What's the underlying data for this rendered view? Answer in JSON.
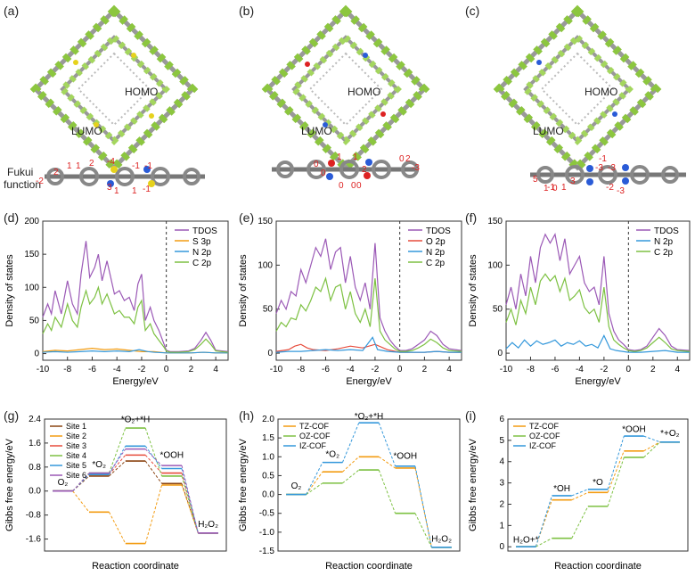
{
  "panels": {
    "a": "(a)",
    "b": "(b)",
    "c": "(c)",
    "d": "(d)",
    "e": "(e)",
    "f": "(f)",
    "g": "(g)",
    "h": "(h)",
    "i": "(i)"
  },
  "structures": {
    "homo": "HOMO",
    "lumo": "LUMO",
    "fukui_line1": "Fukui",
    "fukui_line2": "function",
    "fukui_a": [
      "-2",
      "2",
      "1",
      "1",
      "2",
      "-4",
      "-1",
      "-1",
      "3",
      "1",
      "1",
      "-1"
    ],
    "fukui_b": [
      "0",
      "0",
      "1",
      "0",
      "1",
      "2",
      "0",
      "0",
      "-3",
      "0",
      "2"
    ],
    "fukui_c": [
      "5",
      "-1",
      "1",
      "3",
      "-3",
      "-1",
      "-2",
      "-3",
      "-3",
      "0",
      "1"
    ]
  },
  "colors": {
    "tdos": "#9b59b6",
    "s3p": "#f39c12",
    "o2p": "#e74c3c",
    "n2p": "#3498db",
    "c2p": "#7dc142",
    "tz": "#f39c12",
    "oz": "#7dc142",
    "iz": "#3498db"
  },
  "chart_data": [
    {
      "panel": "d",
      "type": "line",
      "xlabel": "Energy/eV",
      "ylabel": "Density of states",
      "xlim": [
        -10,
        5
      ],
      "ylim": [
        -10,
        200
      ],
      "xticks": [
        "-10",
        "-8",
        "-6",
        "-4",
        "-2",
        "0",
        "2",
        "4"
      ],
      "yticks": [
        "0",
        "50",
        "100",
        "150",
        "200"
      ],
      "fermi_line": 0,
      "legend": [
        "TDOS",
        "S 3p",
        "N 2p",
        "C 2p"
      ],
      "series": [
        {
          "name": "TDOS",
          "x": [
            -10,
            -9.6,
            -9.3,
            -9,
            -8.5,
            -8,
            -7.6,
            -7.2,
            -6.9,
            -6.5,
            -6.2,
            -5.8,
            -5.5,
            -5.2,
            -4.8,
            -4.5,
            -4.2,
            -3.8,
            -3.4,
            -3,
            -2.6,
            -2.3,
            -2,
            -1.7,
            -1.3,
            -1,
            -0.6,
            -0.2,
            0,
            0.3,
            1,
            1.8,
            2.3,
            2.8,
            3.2,
            3.6,
            4,
            5
          ],
          "y": [
            55,
            75,
            60,
            95,
            60,
            110,
            75,
            60,
            120,
            170,
            115,
            130,
            150,
            110,
            140,
            115,
            90,
            95,
            80,
            85,
            65,
            105,
            120,
            50,
            70,
            50,
            35,
            15,
            5,
            3,
            3,
            4,
            8,
            20,
            32,
            20,
            5,
            3
          ]
        },
        {
          "name": "S 3p",
          "x": [
            -10,
            -9,
            -8,
            -7,
            -6.5,
            -6,
            -5,
            -4,
            -3,
            -2.5,
            -2,
            -1,
            0,
            1,
            2,
            3,
            4,
            5
          ],
          "y": [
            3,
            5,
            4,
            6,
            7,
            8,
            6,
            7,
            5,
            4,
            3,
            3,
            1,
            1,
            1,
            2,
            1,
            1
          ]
        },
        {
          "name": "N 2p",
          "x": [
            -10,
            -9,
            -8,
            -7,
            -6,
            -5,
            -4,
            -3,
            -2.2,
            -1.5,
            -1,
            0,
            1,
            2,
            3,
            4,
            5
          ],
          "y": [
            2,
            3,
            2,
            3,
            4,
            3,
            4,
            3,
            6,
            3,
            2,
            1,
            1,
            1,
            2,
            1,
            1
          ]
        },
        {
          "name": "C 2p",
          "x": [
            -10,
            -9.6,
            -9.3,
            -9,
            -8.5,
            -8,
            -7.6,
            -7.2,
            -6.9,
            -6.5,
            -6.2,
            -5.8,
            -5.5,
            -5.2,
            -4.8,
            -4.5,
            -4.2,
            -3.8,
            -3.4,
            -3,
            -2.6,
            -2.3,
            -2,
            -1.7,
            -1.3,
            -1,
            -0.6,
            -0.2,
            0,
            0.3,
            1,
            1.8,
            2.3,
            2.8,
            3.2,
            3.6,
            4,
            5
          ],
          "y": [
            30,
            45,
            35,
            55,
            40,
            75,
            50,
            40,
            70,
            95,
            75,
            85,
            100,
            75,
            90,
            75,
            60,
            65,
            55,
            55,
            45,
            70,
            80,
            35,
            45,
            30,
            20,
            10,
            4,
            2,
            2,
            3,
            6,
            14,
            22,
            14,
            4,
            2
          ]
        }
      ]
    },
    {
      "panel": "e",
      "type": "line",
      "xlabel": "Energy/eV",
      "ylabel": "Density of states",
      "xlim": [
        -10,
        5
      ],
      "ylim": [
        -8,
        150
      ],
      "xticks": [
        "-10",
        "-8",
        "-6",
        "-4",
        "-2",
        "0",
        "2",
        "4"
      ],
      "yticks": [
        "0",
        "50",
        "100",
        "150"
      ],
      "fermi_line": 0,
      "legend": [
        "TDOS",
        "O 2p",
        "N 2p",
        "C 2p"
      ],
      "series": [
        {
          "name": "TDOS",
          "x": [
            -10,
            -9.6,
            -9.2,
            -8.8,
            -8.4,
            -8,
            -7.6,
            -7.2,
            -6.8,
            -6.4,
            -6,
            -5.6,
            -5.2,
            -4.8,
            -4.4,
            -4,
            -3.6,
            -3.2,
            -2.8,
            -2.4,
            -2,
            -1.6,
            -1.2,
            -0.8,
            -0.4,
            0,
            0.5,
            1,
            1.5,
            2,
            2.5,
            3,
            3.5,
            4,
            5
          ],
          "y": [
            45,
            60,
            50,
            70,
            65,
            95,
            80,
            100,
            120,
            110,
            130,
            95,
            115,
            120,
            80,
            110,
            75,
            60,
            80,
            50,
            125,
            40,
            25,
            15,
            8,
            3,
            3,
            5,
            10,
            15,
            25,
            20,
            10,
            5,
            3
          ]
        },
        {
          "name": "O 2p",
          "x": [
            -10,
            -9,
            -8.5,
            -8,
            -7.5,
            -7,
            -6,
            -5,
            -4,
            -3,
            -2,
            -1,
            0,
            1,
            2,
            3,
            4,
            5
          ],
          "y": [
            2,
            4,
            8,
            10,
            6,
            4,
            3,
            5,
            8,
            6,
            10,
            4,
            1,
            1,
            1,
            2,
            1,
            1
          ]
        },
        {
          "name": "N 2p",
          "x": [
            -10,
            -9,
            -8,
            -7,
            -6,
            -5,
            -4,
            -3,
            -2.2,
            -1.8,
            -1,
            0,
            1,
            2,
            3,
            4,
            5
          ],
          "y": [
            1,
            2,
            2,
            3,
            4,
            3,
            4,
            3,
            18,
            4,
            2,
            1,
            1,
            1,
            2,
            1,
            1
          ]
        },
        {
          "name": "C 2p",
          "x": [
            -10,
            -9.6,
            -9.2,
            -8.8,
            -8.4,
            -8,
            -7.6,
            -7.2,
            -6.8,
            -6.4,
            -6,
            -5.6,
            -5.2,
            -4.8,
            -4.4,
            -4,
            -3.6,
            -3.2,
            -2.8,
            -2.4,
            -2,
            -1.6,
            -1.2,
            -0.8,
            -0.4,
            0,
            0.5,
            1,
            1.5,
            2,
            2.5,
            3,
            3.5,
            4,
            5
          ],
          "y": [
            25,
            35,
            30,
            40,
            38,
            55,
            48,
            60,
            75,
            70,
            85,
            60,
            75,
            78,
            50,
            70,
            45,
            35,
            50,
            30,
            85,
            25,
            15,
            10,
            5,
            2,
            2,
            3,
            6,
            10,
            16,
            12,
            6,
            3,
            2
          ]
        }
      ]
    },
    {
      "panel": "f",
      "type": "line",
      "xlabel": "Energy/eV",
      "ylabel": "Density of states",
      "xlim": [
        -10,
        5
      ],
      "ylim": [
        -8,
        150
      ],
      "xticks": [
        "-10",
        "-8",
        "-6",
        "-4",
        "-2",
        "0",
        "2",
        "4"
      ],
      "yticks": [
        "0",
        "50",
        "100",
        "150"
      ],
      "fermi_line": 0,
      "legend": [
        "TDOS",
        "N 2p",
        "C 2p"
      ],
      "series": [
        {
          "name": "TDOS",
          "x": [
            -10,
            -9.6,
            -9.2,
            -8.8,
            -8.4,
            -8,
            -7.6,
            -7.2,
            -6.8,
            -6.4,
            -6,
            -5.6,
            -5.2,
            -4.8,
            -4.4,
            -4,
            -3.6,
            -3.2,
            -2.8,
            -2.4,
            -2,
            -1.6,
            -1.2,
            -0.8,
            -0.4,
            0,
            0.5,
            1,
            1.5,
            2,
            2.5,
            3,
            3.5,
            4,
            5
          ],
          "y": [
            55,
            75,
            50,
            90,
            65,
            110,
            80,
            120,
            135,
            125,
            135,
            105,
            130,
            90,
            100,
            110,
            80,
            70,
            75,
            55,
            110,
            45,
            25,
            15,
            10,
            4,
            3,
            4,
            8,
            18,
            28,
            20,
            8,
            4,
            3
          ]
        },
        {
          "name": "N 2p",
          "x": [
            -10,
            -9.5,
            -9,
            -8.5,
            -8,
            -7.5,
            -7,
            -6.5,
            -6,
            -5.5,
            -5,
            -4.5,
            -4,
            -3.5,
            -3,
            -2.5,
            -2,
            -1.5,
            -1,
            0,
            1,
            2,
            3,
            4,
            5
          ],
          "y": [
            5,
            12,
            6,
            15,
            8,
            14,
            10,
            12,
            15,
            8,
            12,
            10,
            14,
            8,
            10,
            6,
            20,
            5,
            3,
            1,
            1,
            2,
            3,
            1,
            1
          ]
        },
        {
          "name": "C 2p",
          "x": [
            -10,
            -9.6,
            -9.2,
            -8.8,
            -8.4,
            -8,
            -7.6,
            -7.2,
            -6.8,
            -6.4,
            -6,
            -5.6,
            -5.2,
            -4.8,
            -4.4,
            -4,
            -3.6,
            -3.2,
            -2.8,
            -2.4,
            -2,
            -1.6,
            -1.2,
            -0.8,
            -0.4,
            0,
            0.5,
            1,
            1.5,
            2,
            2.5,
            3,
            3.5,
            4,
            5
          ],
          "y": [
            35,
            50,
            32,
            60,
            45,
            75,
            55,
            82,
            90,
            82,
            88,
            70,
            85,
            60,
            65,
            72,
            52,
            45,
            50,
            35,
            75,
            30,
            15,
            10,
            6,
            3,
            2,
            3,
            6,
            12,
            18,
            12,
            5,
            3,
            2
          ]
        }
      ]
    },
    {
      "panel": "g",
      "type": "line",
      "style": "free-energy-diagram",
      "xlabel": "Reaction coordinate",
      "ylabel": "Gibbs free energy/eV",
      "ylim": [
        -2.0,
        2.4
      ],
      "yticks": [
        "-1.6",
        "-0.8",
        "0.0",
        "0.8",
        "1.6",
        "2.4"
      ],
      "states": [
        "O₂",
        "*O₂",
        "*O₂+*H",
        "*OOH",
        "H₂O₂"
      ],
      "legend": [
        "Site 1",
        "Site 2",
        "Site 3",
        "Site 4",
        "Site 5",
        "Site 6"
      ],
      "series": [
        {
          "name": "Site 1",
          "color": "#8B4513",
          "values": [
            0,
            0.5,
            1.0,
            0.25,
            -1.4
          ]
        },
        {
          "name": "Site 2",
          "color": "#f39c12",
          "values": [
            0,
            -0.7,
            -1.75,
            0.2,
            -1.4
          ]
        },
        {
          "name": "Site 3",
          "color": "#e74c3c",
          "values": [
            0,
            0.55,
            1.2,
            0.6,
            -1.4
          ]
        },
        {
          "name": "Site 4",
          "color": "#7dc142",
          "values": [
            0,
            0.6,
            2.1,
            0.5,
            -1.4
          ]
        },
        {
          "name": "Site 5",
          "color": "#3498db",
          "values": [
            0,
            0.55,
            1.5,
            0.75,
            -1.4
          ]
        },
        {
          "name": "Site 6",
          "color": "#9b59b6",
          "values": [
            0,
            0.6,
            1.4,
            0.85,
            -1.4
          ]
        }
      ]
    },
    {
      "panel": "h",
      "type": "line",
      "style": "free-energy-diagram",
      "xlabel": "Reaction coordinate",
      "ylabel": "Gibbs free energy/eV",
      "ylim": [
        -1.5,
        2.0
      ],
      "yticks": [
        "-1.5",
        "-1.0",
        "-0.5",
        "0.0",
        "0.5",
        "1.0",
        "1.5",
        "2.0"
      ],
      "states": [
        "O₂",
        "*O₂",
        "*O₂+*H",
        "*OOH",
        "H₂O₂"
      ],
      "legend": [
        "TZ-COF",
        "OZ-COF",
        "IZ-COF"
      ],
      "series": [
        {
          "name": "TZ-COF",
          "color": "#f39c12",
          "values": [
            0,
            0.6,
            1.0,
            0.7,
            -1.4
          ]
        },
        {
          "name": "OZ-COF",
          "color": "#7dc142",
          "values": [
            0,
            0.3,
            0.65,
            -0.5,
            -1.4
          ]
        },
        {
          "name": "IZ-COF",
          "color": "#3498db",
          "values": [
            0,
            0.85,
            1.9,
            0.75,
            -1.4
          ]
        }
      ]
    },
    {
      "panel": "i",
      "type": "line",
      "style": "free-energy-diagram",
      "xlabel": "Reaction coordinate",
      "ylabel": "Gibbs free energy/eV",
      "ylim": [
        -0.2,
        6.0
      ],
      "yticks": [
        "0",
        "1",
        "2",
        "3",
        "4",
        "5",
        "6"
      ],
      "states": [
        "H₂O+*",
        "*OH",
        "*O",
        "*OOH",
        "*+O₂"
      ],
      "legend": [
        "TZ-COF",
        "OZ-COF",
        "IZ-COF"
      ],
      "series": [
        {
          "name": "TZ-COF",
          "color": "#f39c12",
          "values": [
            0,
            2.2,
            2.55,
            4.5,
            4.92
          ]
        },
        {
          "name": "OZ-COF",
          "color": "#7dc142",
          "values": [
            0,
            0.4,
            1.9,
            4.2,
            4.92
          ]
        },
        {
          "name": "IZ-COF",
          "color": "#3498db",
          "values": [
            0,
            2.4,
            2.7,
            5.2,
            4.92
          ]
        }
      ]
    }
  ]
}
